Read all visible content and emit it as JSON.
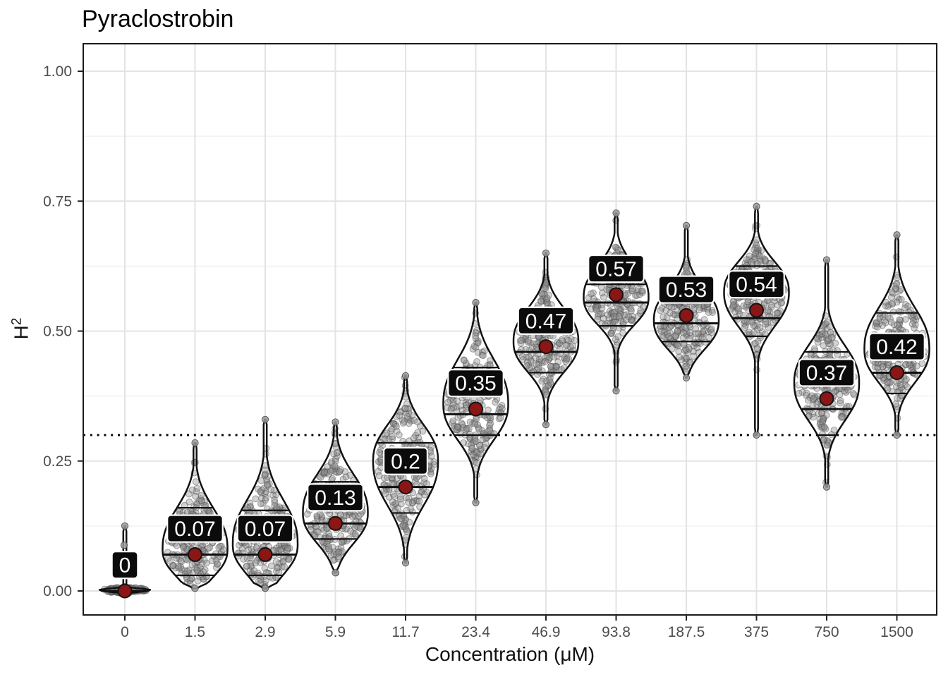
{
  "title": "Pyraclostrobin",
  "axes": {
    "x": {
      "title": "Concentration (μM)",
      "ticks": [
        "0",
        "1.5",
        "2.9",
        "5.9",
        "11.7",
        "23.4",
        "46.9",
        "93.8",
        "187.5",
        "375",
        "750",
        "1500"
      ]
    },
    "y": {
      "title_base": "H",
      "title_exp": "2",
      "ticks": [
        {
          "label": "0.00",
          "v": 0.0
        },
        {
          "label": "0.25",
          "v": 0.25
        },
        {
          "label": "0.50",
          "v": 0.5
        },
        {
          "label": "0.75",
          "v": 0.75
        },
        {
          "label": "1.00",
          "v": 1.0
        }
      ],
      "minor_ticks": [
        0.125,
        0.375,
        0.625,
        0.875
      ],
      "range_shown": [
        -0.046,
        1.053
      ]
    }
  },
  "colors": {
    "mean_dot": "#8b1616",
    "mean_dot_stroke": "#141414",
    "label_bg": "#0b0b0b",
    "label_border": "#ffffff",
    "label_text": "#ffffff",
    "violin_outline": "#111111",
    "violin_fill": "#ffffff",
    "jitter_fill": "#909090",
    "jitter_stroke": "#4a4a4a",
    "grid_major": "#e3e3e3",
    "grid_minor": "#efefef",
    "axis_text": "#4d4d4d",
    "panel_border": "#1a1a1a",
    "reference_line": "#0a0a0a"
  },
  "chart_data": {
    "type": "violin",
    "title": "Pyraclostrobin",
    "xlabel": "Concentration (μM)",
    "ylabel": "H^2",
    "x_categories": [
      "0",
      "1.5",
      "2.9",
      "5.9",
      "11.7",
      "23.4",
      "46.9",
      "93.8",
      "187.5",
      "375",
      "750",
      "1500"
    ],
    "y_ticks": [
      0.0,
      0.25,
      0.5,
      0.75,
      1.0
    ],
    "grid": true,
    "reference_line": {
      "value": 0.3,
      "style": "dotted"
    },
    "label_nudge_y": 0.05,
    "series": [
      {
        "x": "0",
        "label": "0",
        "mean": 0.0,
        "median": 0.0,
        "q1": null,
        "q3": null,
        "min": -0.006,
        "max": 0.125,
        "mode": 0.0,
        "s_down": 0.003,
        "s_up": 0.004,
        "n": 170,
        "flat": true,
        "half_width": 47,
        "outliers": [
          0.088
        ]
      },
      {
        "x": "1.5",
        "label": "0.07",
        "mean": 0.07,
        "median": 0.07,
        "q1": 0.03,
        "q3": 0.16,
        "min": 0.005,
        "max": 0.285,
        "mode": 0.08,
        "s_down": 0.05,
        "s_up": 0.075,
        "n": 240
      },
      {
        "x": "2.9",
        "label": "0.07",
        "mean": 0.07,
        "median": 0.07,
        "q1": 0.03,
        "q3": 0.155,
        "min": 0.005,
        "max": 0.33,
        "mode": 0.09,
        "s_down": 0.055,
        "s_up": 0.08,
        "n": 240
      },
      {
        "x": "5.9",
        "label": "0.13",
        "mean": 0.13,
        "median": 0.13,
        "q1": 0.1,
        "q3": 0.21,
        "min": 0.035,
        "max": 0.325,
        "mode": 0.15,
        "s_down": 0.055,
        "s_up": 0.07,
        "n": 240
      },
      {
        "x": "11.7",
        "label": "0.2",
        "mean": 0.2,
        "median": 0.2,
        "q1": 0.15,
        "q3": 0.285,
        "min": 0.054,
        "max": 0.414,
        "mode": 0.25,
        "s_down": 0.08,
        "s_up": 0.065,
        "n": 240
      },
      {
        "x": "23.4",
        "label": "0.35",
        "mean": 0.35,
        "median": 0.34,
        "q1": 0.3,
        "q3": 0.43,
        "min": 0.17,
        "max": 0.555,
        "mode": 0.36,
        "s_down": 0.065,
        "s_up": 0.08,
        "n": 240
      },
      {
        "x": "46.9",
        "label": "0.47",
        "mean": 0.47,
        "median": 0.46,
        "q1": 0.42,
        "q3": 0.53,
        "min": 0.32,
        "max": 0.65,
        "mode": 0.48,
        "s_down": 0.055,
        "s_up": 0.06,
        "n": 240
      },
      {
        "x": "93.8",
        "label": "0.57",
        "mean": 0.57,
        "median": 0.555,
        "q1": 0.51,
        "q3": 0.59,
        "min": 0.385,
        "max": 0.727,
        "mode": 0.565,
        "s_down": 0.05,
        "s_up": 0.058,
        "n": 240
      },
      {
        "x": "187.5",
        "label": "0.53",
        "mean": 0.53,
        "median": 0.515,
        "q1": 0.48,
        "q3": 0.59,
        "min": 0.41,
        "max": 0.703,
        "mode": 0.52,
        "s_down": 0.052,
        "s_up": 0.058,
        "n": 240
      },
      {
        "x": "375",
        "label": "0.54",
        "mean": 0.54,
        "median": 0.525,
        "q1": 0.49,
        "q3": 0.625,
        "min": 0.3,
        "max": 0.74,
        "mode": 0.575,
        "s_down": 0.062,
        "s_up": 0.055,
        "n": 240
      },
      {
        "x": "750",
        "label": "0.37",
        "mean": 0.37,
        "median": 0.35,
        "q1": 0.3,
        "q3": 0.46,
        "min": 0.2,
        "max": 0.637,
        "mode": 0.4,
        "s_down": 0.068,
        "s_up": 0.068,
        "n": 240
      },
      {
        "x": "1500",
        "label": "0.42",
        "mean": 0.42,
        "median": 0.42,
        "q1": 0.38,
        "q3": 0.535,
        "min": 0.3,
        "max": 0.685,
        "mode": 0.465,
        "s_down": 0.06,
        "s_up": 0.075,
        "n": 240
      }
    ]
  }
}
